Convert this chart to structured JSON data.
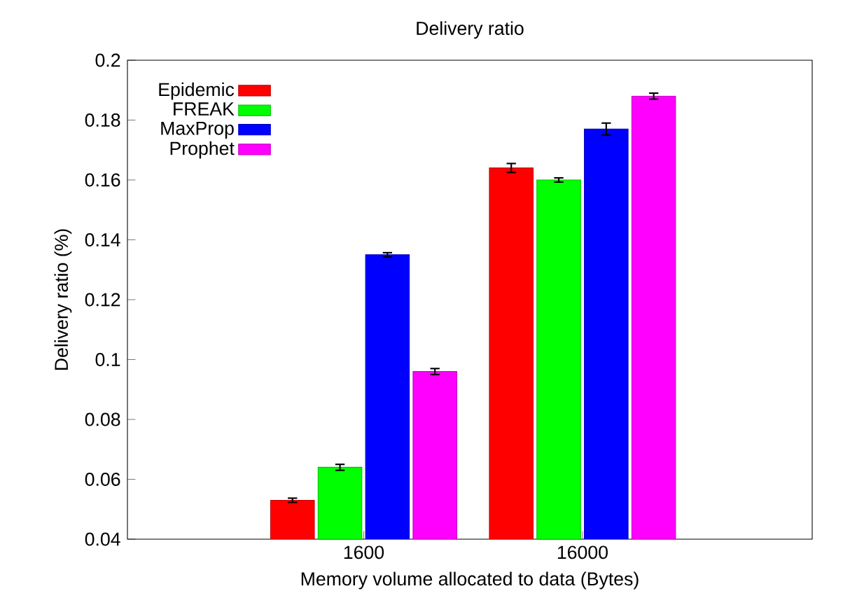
{
  "chart_data": {
    "type": "bar",
    "title": "Delivery ratio",
    "xlabel": "Memory volume allocated to data (Bytes)",
    "ylabel": "Delivery ratio (%)",
    "categories": [
      "1600",
      "16000"
    ],
    "series": [
      {
        "name": "Epidemic",
        "color": "#ff0000",
        "values": [
          0.053,
          0.164
        ],
        "errors": [
          0.0007,
          0.0015
        ]
      },
      {
        "name": "FREAK",
        "color": "#00ff00",
        "values": [
          0.064,
          0.16
        ],
        "errors": [
          0.001,
          0.0007
        ]
      },
      {
        "name": "MaxProp",
        "color": "#0000ff",
        "values": [
          0.135,
          0.177
        ],
        "errors": [
          0.0007,
          0.002
        ]
      },
      {
        "name": "Prophet",
        "color": "#ff00ff",
        "values": [
          0.096,
          0.188
        ],
        "errors": [
          0.001,
          0.001
        ]
      }
    ],
    "ylim": [
      0.04,
      0.2
    ],
    "yticks": [
      0.04,
      0.06,
      0.08,
      0.1,
      0.12,
      0.14,
      0.16,
      0.18,
      0.2
    ],
    "grid": false,
    "legend": "top left"
  }
}
